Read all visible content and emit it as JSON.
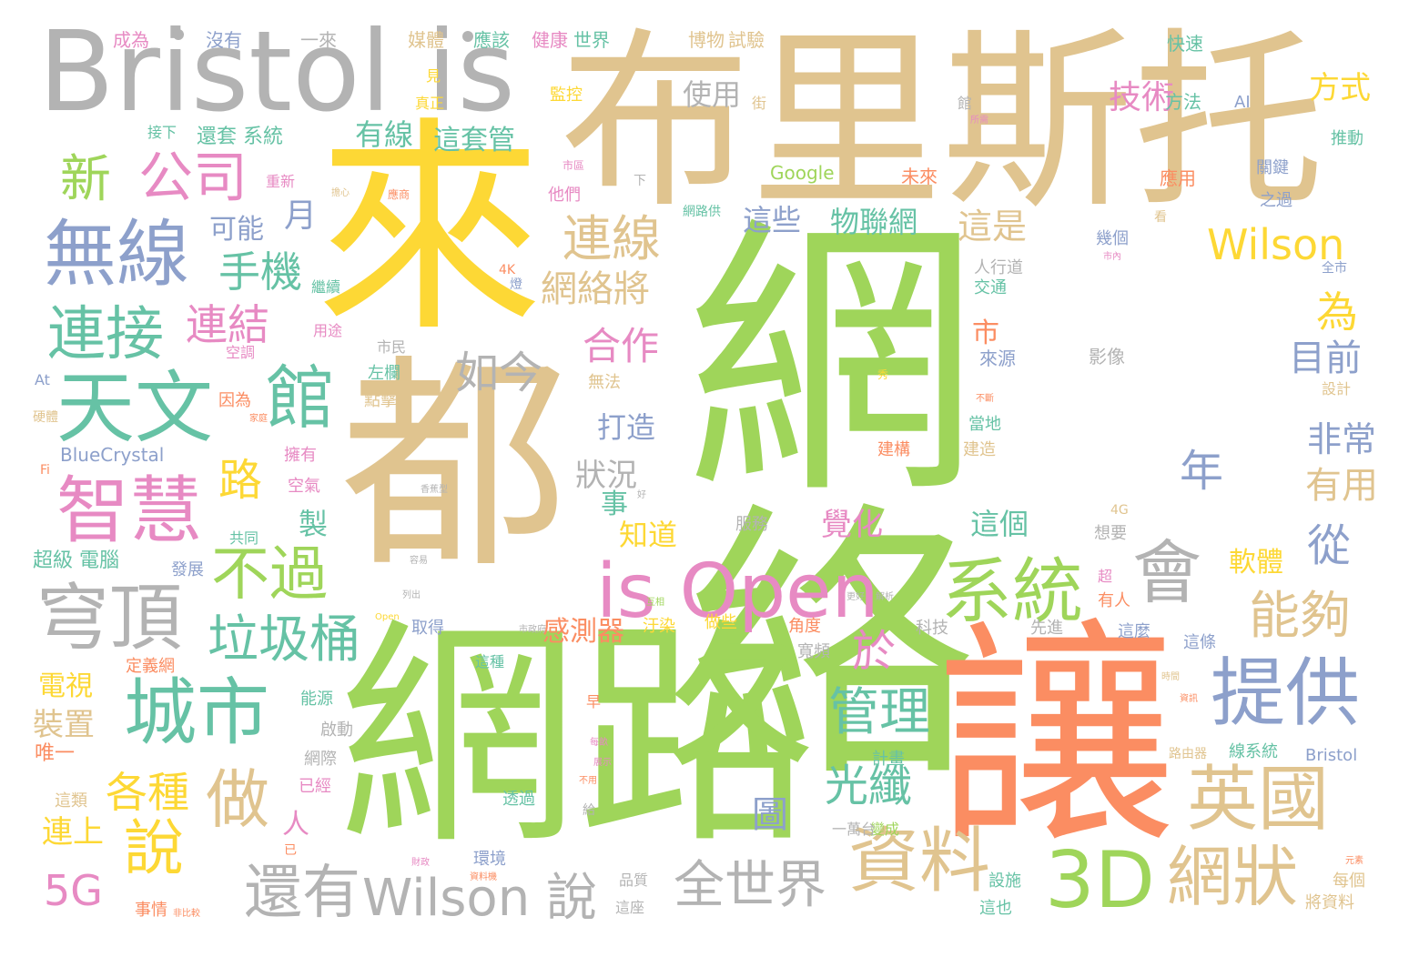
{
  "palette": {
    "green": "#9fd55a",
    "tan": "#e0c48f",
    "yellow": "#fdd835",
    "orange": "#fb8d62",
    "teal": "#66c2a5",
    "blue": "#8da0cb",
    "pink": "#e78ac3",
    "gray": "#b3b3b3"
  },
  "words": [
    {
      "text": "網絡",
      "color": "green"
    },
    {
      "text": "網路",
      "color": "green"
    },
    {
      "text": "都",
      "color": "tan"
    },
    {
      "text": "來",
      "color": "yellow"
    },
    {
      "text": "布里斯托",
      "color": "tan"
    },
    {
      "text": "Bristol is",
      "color": "gray"
    },
    {
      "text": "讓",
      "color": "orange"
    },
    {
      "text": "is Open",
      "color": "pink"
    },
    {
      "text": "3D",
      "color": "green"
    },
    {
      "text": "英國",
      "color": "tan"
    },
    {
      "text": "網狀",
      "color": "tan"
    },
    {
      "text": "資料",
      "color": "tan"
    },
    {
      "text": "提供",
      "color": "blue"
    },
    {
      "text": "系統",
      "color": "green"
    },
    {
      "text": "會",
      "color": "gray"
    },
    {
      "text": "天文",
      "color": "teal"
    },
    {
      "text": "館",
      "color": "teal"
    },
    {
      "text": "智慧",
      "color": "pink"
    },
    {
      "text": "無線",
      "color": "blue"
    },
    {
      "text": "連接",
      "color": "teal"
    },
    {
      "text": "城市",
      "color": "teal"
    },
    {
      "text": "穹頂",
      "color": "gray"
    },
    {
      "text": "不過",
      "color": "green"
    },
    {
      "text": "垃圾桶",
      "color": "teal"
    },
    {
      "text": "做",
      "color": "tan"
    },
    {
      "text": "還有",
      "color": "gray"
    },
    {
      "text": "Wilson 說",
      "color": "gray"
    },
    {
      "text": "全世界",
      "color": "gray"
    },
    {
      "text": "公司",
      "color": "pink"
    },
    {
      "text": "新",
      "color": "green"
    },
    {
      "text": "連線",
      "color": "tan"
    },
    {
      "text": "Wilson",
      "color": "yellow"
    },
    {
      "text": "能夠",
      "color": "tan"
    },
    {
      "text": "管理",
      "color": "teal"
    },
    {
      "text": "如今",
      "color": "gray"
    },
    {
      "text": "手機",
      "color": "teal"
    },
    {
      "text": "連結",
      "color": "pink"
    },
    {
      "text": "路",
      "color": "yellow"
    },
    {
      "text": "各種",
      "color": "yellow"
    },
    {
      "text": "說",
      "color": "yellow"
    },
    {
      "text": "光纖",
      "color": "teal"
    },
    {
      "text": "網絡將",
      "color": "tan"
    },
    {
      "text": "合作",
      "color": "pink"
    },
    {
      "text": "從",
      "color": "blue"
    },
    {
      "text": "物聯網",
      "color": "teal"
    },
    {
      "text": "這是",
      "color": "tan"
    },
    {
      "text": "為",
      "color": "yellow"
    },
    {
      "text": "目前",
      "color": "blue"
    },
    {
      "text": "非常",
      "color": "blue"
    },
    {
      "text": "有用",
      "color": "tan"
    },
    {
      "text": "5G",
      "color": "pink"
    },
    {
      "text": "有線",
      "color": "teal"
    },
    {
      "text": "這套管",
      "color": "teal"
    },
    {
      "text": "技術",
      "color": "pink"
    },
    {
      "text": "方式",
      "color": "yellow"
    },
    {
      "text": "使用",
      "color": "gray"
    },
    {
      "text": "感測器",
      "color": "orange"
    },
    {
      "text": "軟體",
      "color": "yellow"
    },
    {
      "text": "覺化",
      "color": "pink"
    },
    {
      "text": "這個",
      "color": "teal"
    },
    {
      "text": "知道",
      "color": "yellow"
    },
    {
      "text": "打造",
      "color": "blue"
    },
    {
      "text": "狀況",
      "color": "gray"
    },
    {
      "text": "這些",
      "color": "blue"
    },
    {
      "text": "可能",
      "color": "blue"
    },
    {
      "text": "月",
      "color": "blue"
    },
    {
      "text": "連上",
      "color": "yellow"
    },
    {
      "text": "裝置",
      "color": "tan"
    },
    {
      "text": "電視",
      "color": "yellow"
    },
    {
      "text": "年",
      "color": "blue"
    },
    {
      "text": "於",
      "color": "pink"
    },
    {
      "text": "市",
      "color": "orange"
    },
    {
      "text": "人",
      "color": "pink"
    },
    {
      "text": "製",
      "color": "teal"
    },
    {
      "text": "事",
      "color": "teal"
    },
    {
      "text": "圖",
      "color": "blue"
    },
    {
      "text": "還套 系統",
      "color": "teal"
    },
    {
      "text": "超級 電腦",
      "color": "teal"
    },
    {
      "text": "Google",
      "color": "green"
    },
    {
      "text": "Bristol",
      "color": "blue"
    },
    {
      "text": "BlueCrystal",
      "color": "blue"
    },
    {
      "text": "成為",
      "color": "pink"
    },
    {
      "text": "沒有",
      "color": "blue"
    },
    {
      "text": "一來",
      "color": "gray"
    },
    {
      "text": "媒體",
      "color": "tan"
    },
    {
      "text": "應該",
      "color": "teal"
    },
    {
      "text": "健康",
      "color": "pink"
    },
    {
      "text": "世界",
      "color": "teal"
    },
    {
      "text": "博物",
      "color": "tan"
    },
    {
      "text": "試驗",
      "color": "tan"
    },
    {
      "text": "快速",
      "color": "teal"
    },
    {
      "text": "方法",
      "color": "teal"
    },
    {
      "text": "AI",
      "color": "blue"
    },
    {
      "text": "推動",
      "color": "teal"
    },
    {
      "text": "關鍵",
      "color": "blue"
    },
    {
      "text": "之過",
      "color": "blue"
    },
    {
      "text": "應用",
      "color": "orange"
    },
    {
      "text": "未來",
      "color": "orange"
    },
    {
      "text": "幾個",
      "color": "blue"
    },
    {
      "text": "人行道",
      "color": "gray"
    },
    {
      "text": "交通",
      "color": "teal"
    },
    {
      "text": "來源",
      "color": "blue"
    },
    {
      "text": "影像",
      "color": "gray"
    },
    {
      "text": "全市",
      "color": "blue"
    },
    {
      "text": "設計",
      "color": "tan"
    },
    {
      "text": "建構",
      "color": "orange"
    },
    {
      "text": "當地",
      "color": "teal"
    },
    {
      "text": "建造",
      "color": "tan"
    },
    {
      "text": "想要",
      "color": "gray"
    },
    {
      "text": "有人",
      "color": "orange"
    },
    {
      "text": "這麼",
      "color": "blue"
    },
    {
      "text": "這條",
      "color": "blue"
    },
    {
      "text": "先進",
      "color": "gray"
    },
    {
      "text": "科技",
      "color": "gray"
    },
    {
      "text": "寬頻",
      "color": "gray"
    },
    {
      "text": "角度",
      "color": "orange"
    },
    {
      "text": "做些",
      "color": "yellow"
    },
    {
      "text": "汙染",
      "color": "yellow"
    },
    {
      "text": "這種",
      "color": "teal"
    },
    {
      "text": "取得",
      "color": "blue"
    },
    {
      "text": "服務",
      "color": "gray"
    },
    {
      "text": "計畫",
      "color": "teal"
    },
    {
      "text": "網際",
      "color": "gray"
    },
    {
      "text": "啟動",
      "color": "gray"
    },
    {
      "text": "能源",
      "color": "teal"
    },
    {
      "text": "定義網",
      "color": "orange"
    },
    {
      "text": "唯一",
      "color": "orange"
    },
    {
      "text": "事情",
      "color": "orange"
    },
    {
      "text": "這類",
      "color": "tan"
    },
    {
      "text": "每個",
      "color": "tan"
    },
    {
      "text": "將資料",
      "color": "tan"
    },
    {
      "text": "路由器",
      "color": "tan"
    },
    {
      "text": "線系統",
      "color": "teal"
    },
    {
      "text": "變成",
      "color": "green"
    },
    {
      "text": "一萬台",
      "color": "gray"
    },
    {
      "text": "設施",
      "color": "teal"
    },
    {
      "text": "這也",
      "color": "teal"
    },
    {
      "text": "品質",
      "color": "gray"
    },
    {
      "text": "這座",
      "color": "gray"
    },
    {
      "text": "環境",
      "color": "blue"
    },
    {
      "text": "透過",
      "color": "teal"
    },
    {
      "text": "已經",
      "color": "pink"
    },
    {
      "text": "發展",
      "color": "blue"
    },
    {
      "text": "共同",
      "color": "teal"
    },
    {
      "text": "空氣",
      "color": "pink"
    },
    {
      "text": "擁有",
      "color": "pink"
    },
    {
      "text": "點擊",
      "color": "tan"
    },
    {
      "text": "左欄",
      "color": "teal"
    },
    {
      "text": "市民",
      "color": "gray"
    },
    {
      "text": "無法",
      "color": "tan"
    },
    {
      "text": "因為",
      "color": "orange"
    },
    {
      "text": "硬體",
      "color": "tan"
    },
    {
      "text": "空調",
      "color": "pink"
    },
    {
      "text": "用途",
      "color": "pink"
    },
    {
      "text": "繼續",
      "color": "teal"
    },
    {
      "text": "重新",
      "color": "pink"
    },
    {
      "text": "他們",
      "color": "pink"
    },
    {
      "text": "監控",
      "color": "yellow"
    },
    {
      "text": "真正",
      "color": "yellow"
    },
    {
      "text": "接下",
      "color": "teal"
    },
    {
      "text": "見",
      "color": "yellow"
    },
    {
      "text": "街",
      "color": "tan"
    },
    {
      "text": "館",
      "color": "gray"
    },
    {
      "text": "下",
      "color": "gray"
    },
    {
      "text": "早",
      "color": "orange"
    },
    {
      "text": "超",
      "color": "pink"
    },
    {
      "text": "4K",
      "color": "orange"
    },
    {
      "text": "4G",
      "color": "tan"
    },
    {
      "text": "看",
      "color": "tan"
    },
    {
      "text": "At",
      "color": "blue"
    },
    {
      "text": "Fi",
      "color": "orange"
    },
    {
      "text": "網路供",
      "color": "teal"
    },
    {
      "text": "燈",
      "color": "blue"
    },
    {
      "text": "已",
      "color": "orange"
    },
    {
      "text": "給",
      "color": "gray"
    },
    {
      "text": "市區",
      "color": "pink"
    },
    {
      "text": "應商",
      "color": "orange"
    },
    {
      "text": "擔心",
      "color": "tan"
    },
    {
      "text": "家庭",
      "color": "orange"
    },
    {
      "text": "所需",
      "color": "pink"
    },
    {
      "text": "市內",
      "color": "pink"
    },
    {
      "text": "秀",
      "color": "yellow"
    },
    {
      "text": "不斷",
      "color": "orange"
    },
    {
      "text": "資訊",
      "color": "orange"
    },
    {
      "text": "展示",
      "color": "pink"
    },
    {
      "text": "不用",
      "color": "orange"
    },
    {
      "text": "每畝",
      "color": "pink"
    },
    {
      "text": "元素",
      "color": "orange"
    },
    {
      "text": "財政",
      "color": "pink"
    },
    {
      "text": "資料機",
      "color": "orange"
    },
    {
      "text": "列出",
      "color": "gray"
    },
    {
      "text": "市政府",
      "color": "gray"
    },
    {
      "text": "容易",
      "color": "gray"
    },
    {
      "text": "Open",
      "color": "yellow"
    },
    {
      "text": "互相",
      "color": "green"
    },
    {
      "text": "更好",
      "color": "gray"
    },
    {
      "text": "解析",
      "color": "gray"
    },
    {
      "text": "時間",
      "color": "tan"
    },
    {
      "text": "非比較",
      "color": "orange"
    },
    {
      "text": "好",
      "color": "gray"
    },
    {
      "text": "香蕉型",
      "color": "gray"
    }
  ]
}
